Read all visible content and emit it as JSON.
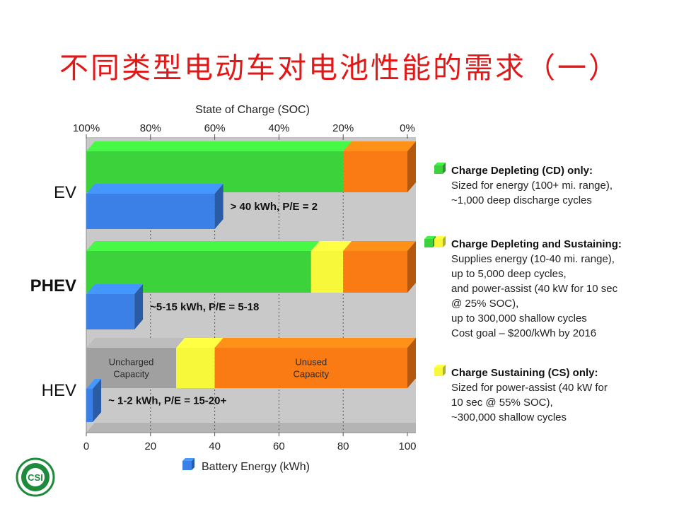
{
  "title": "不同类型电动车对电池性能的需求（一）",
  "colors": {
    "cd": "#3cd23c",
    "cs": "#f8f83a",
    "unused": "#fa7a14",
    "uncharged": "#a0a0a0",
    "energy": "#3a80e6",
    "plot_bg": "#c9c9c9",
    "title": "#e01818"
  },
  "chart_data": {
    "type": "bar",
    "orientation": "horizontal",
    "categories": [
      "EV",
      "PHEV",
      "HEV"
    ],
    "soc_axis": {
      "label": "State of Charge (SOC)",
      "range": [
        100,
        0
      ],
      "ticks": [
        "100%",
        "80%",
        "60%",
        "40%",
        "20%",
        "0%"
      ]
    },
    "energy_axis": {
      "label": "Battery Energy (kWh)",
      "range": [
        0,
        100
      ],
      "ticks": [
        "0",
        "20",
        "40",
        "60",
        "80",
        "100"
      ]
    },
    "soc_segments": [
      [
        {
          "type": "cd",
          "from": 100,
          "to": 20
        },
        {
          "type": "unused",
          "from": 20,
          "to": 0
        }
      ],
      [
        {
          "type": "cd",
          "from": 100,
          "to": 30
        },
        {
          "type": "cs",
          "from": 30,
          "to": 20
        },
        {
          "type": "unused",
          "from": 20,
          "to": 0
        }
      ],
      [
        {
          "type": "uncharged",
          "from": 100,
          "to": 72,
          "label": [
            "Uncharged",
            "Capacity"
          ]
        },
        {
          "type": "cs",
          "from": 72,
          "to": 60
        },
        {
          "type": "unused",
          "from": 60,
          "to": 0,
          "label": [
            "Unused",
            "Capacity"
          ]
        }
      ]
    ],
    "energy_bars": [
      {
        "value": 40,
        "label": "> 40 kWh, P/E = 2"
      },
      {
        "value": 15,
        "label": "~5-15 kWh, P/E = 5-18"
      },
      {
        "value": 2,
        "label": "~ 1-2 kWh, P/E = 15-20+"
      }
    ],
    "legend": [
      {
        "swatches": [
          "cd"
        ],
        "heading": "Charge Depleting (CD) only:",
        "lines": [
          "Sized for energy (100+ mi. range),",
          "~1,000 deep discharge cycles"
        ]
      },
      {
        "swatches": [
          "cd",
          "cs"
        ],
        "heading": "Charge Depleting and Sustaining:",
        "lines": [
          "Supplies energy (10-40 mi. range),",
          "up to 5,000 deep cycles,",
          "and power-assist (40 kW  for 10 sec",
          "@ 25% SOC),",
          "up to 300,000 shallow cycles",
          "Cost goal – $200/kWh by 2016"
        ]
      },
      {
        "swatches": [
          "cs"
        ],
        "heading": "Charge Sustaining (CS) only:",
        "lines": [
          "Sized for power-assist (40 kW  for",
          "10 sec @ 55% SOC),",
          "~300,000 shallow cycles"
        ]
      }
    ]
  },
  "logo": {
    "text": "CSI"
  }
}
